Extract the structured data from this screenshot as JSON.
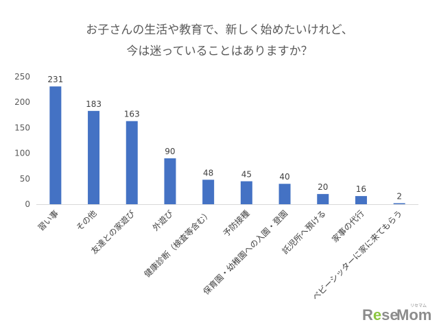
{
  "chart_data": {
    "type": "bar",
    "title": [
      "お子さんの生活や教育で、新しく始めたいけれど、",
      "今は迷っていることはありますか？"
    ],
    "categories": [
      "習い事",
      "その他",
      "友達との家遊び",
      "外遊び",
      "健康診断（検査等含む）",
      "予防接種",
      "保育園・幼稚園への入園・登園",
      "託児所へ預ける",
      "家事の代行",
      "ベビーシッターに家に来てもらう"
    ],
    "values": [
      231,
      183,
      163,
      90,
      48,
      45,
      40,
      20,
      16,
      2
    ],
    "yticks": [
      "250",
      "200",
      "150",
      "100",
      "50",
      "0"
    ],
    "ylim": [
      0,
      250
    ],
    "bar_color": "#4472c4",
    "grid": false,
    "legend": "none"
  },
  "watermark": {
    "rese": "Rese",
    "mom": "Mom",
    "ruby": "リセマム",
    "e_color": "#8cc63f"
  }
}
